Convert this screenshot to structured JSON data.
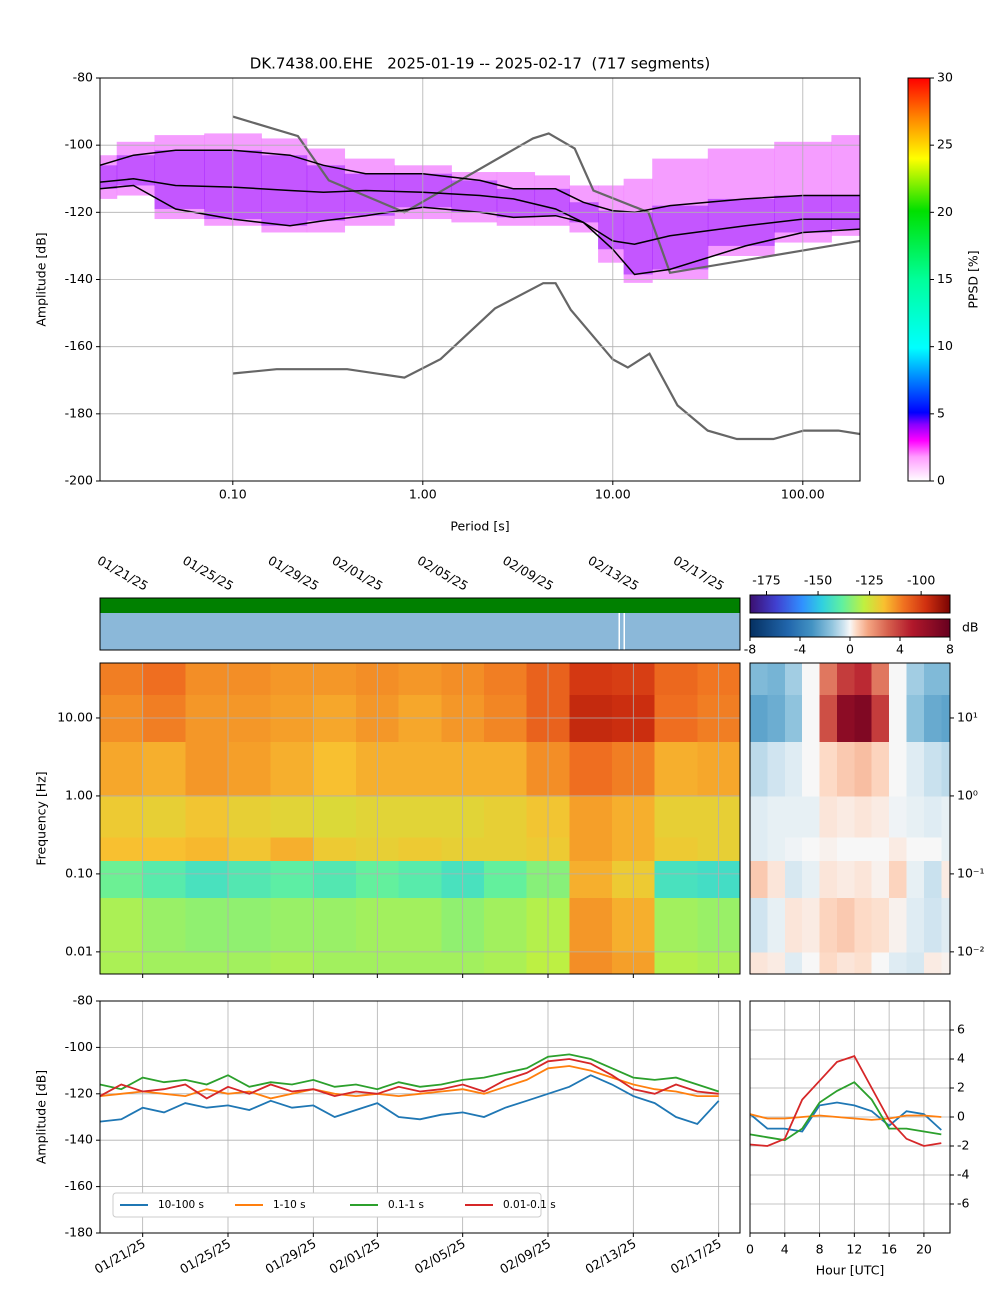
{
  "chart_data": [
    {
      "type": "ppsd",
      "title": "DK.7438.00.EHE   2025-01-19 -- 2025-02-17  (717 segments)",
      "xlabel": "Period [s]",
      "ylabel": "Amplitude [dB]",
      "log_x": true,
      "grid": true,
      "xlim": [
        0.02,
        200
      ],
      "ylim": [
        -200,
        -80
      ],
      "xticks": [
        {
          "value": 0.1,
          "label": "0.10"
        },
        {
          "value": 1,
          "label": "1.00"
        },
        {
          "value": 10,
          "label": "10.00"
        },
        {
          "value": 100,
          "label": "100.00"
        }
      ],
      "yticks": [
        -200,
        -180,
        -160,
        -140,
        -120,
        -100,
        -80
      ],
      "x": [
        0.02,
        0.03,
        0.05,
        0.1,
        0.2,
        0.3,
        0.5,
        1,
        2,
        3,
        5,
        7,
        10,
        13,
        20,
        50,
        100,
        200
      ],
      "density": {
        "color": "#f27cff",
        "upper": [
          -103,
          -99,
          -97,
          -96.5,
          -98,
          -101,
          -104,
          -106,
          -108,
          -108,
          -109,
          -112,
          -112,
          -110,
          -104,
          -101,
          -99,
          -97
        ],
        "lower": [
          -116,
          -115,
          -122,
          -124,
          -126,
          -126,
          -124,
          -122,
          -123,
          -124,
          -124,
          -126,
          -135,
          -141,
          -140,
          -133,
          -129,
          -127
        ]
      },
      "percentiles": [
        {
          "color": "#000000",
          "values": [
            -106,
            -103,
            -101.5,
            -101.5,
            -103,
            -106,
            -108.5,
            -108.5,
            -110.5,
            -113,
            -113,
            -117,
            -119.5,
            -120,
            -118,
            -116,
            -115,
            -115
          ]
        },
        {
          "color": "#000000",
          "values": [
            -111,
            -110,
            -112,
            -112.5,
            -113.5,
            -114,
            -113.5,
            -114,
            -115,
            -116,
            -119,
            -123,
            -128.5,
            -129.5,
            -127,
            -124,
            -122,
            -122
          ]
        },
        {
          "color": "#000000",
          "values": [
            -113,
            -112,
            -119,
            -122,
            -124,
            -122.5,
            -121,
            -118.5,
            -120,
            -121.5,
            -121,
            -123,
            -131,
            -138.5,
            -137,
            -130,
            -126,
            -125
          ]
        }
      ],
      "noise_models": [
        {
          "color": "#666666",
          "x": [
            0.1,
            0.22,
            0.32,
            0.8,
            3.8,
            4.6,
            6.3,
            7.9,
            15.4,
            20,
            200
          ],
          "values": [
            -91.5,
            -97.3,
            -110.5,
            -120,
            -98,
            -96.5,
            -101,
            -113.5,
            -120,
            -138,
            -128.5
          ]
        },
        {
          "color": "#666666",
          "x": [
            0.1,
            0.17,
            0.4,
            0.8,
            1.24,
            2.4,
            4.3,
            5.0,
            6.0,
            10,
            12,
            15.6,
            21.9,
            31.6,
            45,
            70,
            101,
            154,
            200
          ],
          "values": [
            -168,
            -166.7,
            -166.7,
            -169.2,
            -163.7,
            -148.6,
            -141.1,
            -141.1,
            -149,
            -163.8,
            -166.2,
            -162.1,
            -177.5,
            -185,
            -187.5,
            -187.5,
            -185,
            -185,
            -186
          ]
        }
      ],
      "colormap": "pqlx",
      "colorbar": {
        "label": "PPSD [%]",
        "lim": [
          0,
          30
        ],
        "ticks": [
          0,
          5,
          10,
          15,
          20,
          25,
          30
        ]
      }
    },
    {
      "type": "spectrogram",
      "ylabel": "Frequency [Hz]",
      "log_y": true,
      "grid": true,
      "xlim": [
        "2025-01-19",
        "2025-02-18"
      ],
      "ylim": [
        0.0052,
        50.7
      ],
      "xticks": [
        {
          "value": "2025-01-21",
          "label": "01/21/25"
        },
        {
          "value": "2025-01-25",
          "label": "01/25/25"
        },
        {
          "value": "2025-01-29",
          "label": "01/29/25"
        },
        {
          "value": "2025-02-01",
          "label": "02/01/25"
        },
        {
          "value": "2025-02-05",
          "label": "02/05/25"
        },
        {
          "value": "2025-02-09",
          "label": "02/09/25"
        },
        {
          "value": "2025-02-13",
          "label": "02/13/25"
        },
        {
          "value": "2025-02-17",
          "label": "02/17/25"
        }
      ],
      "yticks": [
        {
          "value": 0.01,
          "label": "0.01"
        },
        {
          "value": 0.1,
          "label": "0.10"
        },
        {
          "value": 1,
          "label": "1.00"
        },
        {
          "value": 10,
          "label": "10.00"
        }
      ],
      "time_bins": [
        "2025-01-19",
        "2025-01-21",
        "2025-01-23",
        "2025-01-25",
        "2025-01-27",
        "2025-01-29",
        "2025-01-31",
        "2025-02-02",
        "2025-02-04",
        "2025-02-06",
        "2025-02-08",
        "2025-02-10",
        "2025-02-12",
        "2025-02-14",
        "2025-02-16",
        "2025-02-18"
      ],
      "freq_bins": [
        0.0052,
        0.01,
        0.05,
        0.15,
        0.3,
        1,
        5,
        20,
        50.7
      ],
      "values": [
        [
          -130,
          -131,
          -131,
          -131,
          -130,
          -131,
          -131,
          -131,
          -131,
          -130,
          -128,
          -112,
          -114,
          -129,
          -130
        ],
        [
          -130,
          -132,
          -133,
          -133,
          -132,
          -132,
          -131,
          -131,
          -133,
          -131,
          -129,
          -113,
          -116,
          -131,
          -132
        ],
        [
          -137,
          -140,
          -143,
          -141,
          -139,
          -141,
          -138,
          -140,
          -143,
          -138,
          -134,
          -116,
          -120,
          -143,
          -144
        ],
        [
          -118,
          -118,
          -117,
          -119,
          -116,
          -120,
          -121,
          -120,
          -121,
          -121,
          -120,
          -114,
          -116,
          -120,
          -121
        ],
        [
          -120,
          -121,
          -119,
          -121,
          -122,
          -123,
          -122,
          -122,
          -122,
          -121,
          -119,
          -114,
          -116,
          -121,
          -121
        ],
        [
          -115,
          -116,
          -113,
          -114,
          -116,
          -118,
          -116,
          -116,
          -116,
          -116,
          -112,
          -108,
          -110,
          -116,
          -115
        ],
        [
          -112,
          -110,
          -113,
          -113,
          -114,
          -115,
          -113,
          -115,
          -113,
          -111,
          -106,
          -96,
          -97,
          -108,
          -110
        ],
        [
          -110,
          -108,
          -112,
          -112,
          -113,
          -113,
          -112,
          -113,
          -112,
          -110,
          -106,
          -99,
          -100,
          -107,
          -109
        ]
      ],
      "colormap": "rainbow",
      "colorbar": {
        "lim": [
          -183,
          -86
        ],
        "ticks": [
          -175,
          -150,
          -125,
          -100
        ]
      }
    },
    {
      "type": "spectrogram",
      "log_y": true,
      "xlim": [
        0,
        23
      ],
      "ylim": [
        0.0052,
        50.7
      ],
      "y_side": "right",
      "yticks": [
        {
          "value": 0.01,
          "label": "10⁻²"
        },
        {
          "value": 0.1,
          "label": "10⁻¹"
        },
        {
          "value": 1,
          "label": "10⁰"
        },
        {
          "value": 10,
          "label": "10¹"
        }
      ],
      "time_bins": [
        0,
        2,
        4,
        6,
        8,
        10,
        12,
        14,
        16,
        18,
        20,
        22,
        24
      ],
      "freq_bins": [
        0.0052,
        0.01,
        0.05,
        0.15,
        0.3,
        1,
        5,
        20,
        50.7
      ],
      "values": [
        [
          0.3,
          0.2,
          -0.3,
          0,
          0.5,
          0.3,
          0.4,
          0,
          -0.3,
          -0.4,
          0.2,
          0.1
        ],
        [
          -0.5,
          -0.2,
          0.3,
          0.2,
          0.6,
          0.8,
          0.5,
          0.4,
          0.1,
          -0.3,
          -0.5,
          -0.3
        ],
        [
          0.8,
          0.3,
          -0.4,
          -0.2,
          0.3,
          0.2,
          0.3,
          0.1,
          0.6,
          -0.2,
          -0.6,
          0.2
        ],
        [
          -0.3,
          -0.2,
          -0.1,
          0,
          0.1,
          0,
          0,
          0,
          0.2,
          0,
          0,
          -0.2
        ],
        [
          -0.3,
          -0.2,
          -0.2,
          -0.2,
          0.3,
          0.2,
          0.3,
          0.2,
          -0.1,
          -0.2,
          -0.3,
          -0.2
        ],
        [
          -0.8,
          -0.5,
          -0.3,
          0,
          0.5,
          0.8,
          1.0,
          0.6,
          0,
          -0.3,
          -0.6,
          -0.8
        ],
        [
          -2.5,
          -2.2,
          -1.5,
          0,
          3.5,
          6.5,
          7,
          4,
          0,
          -1.5,
          -2.3,
          -2.5
        ],
        [
          -1.8,
          -2,
          -1.2,
          0,
          2.5,
          4,
          4.5,
          2.5,
          0,
          -1.2,
          -1.8,
          -1.8
        ]
      ],
      "colormap": "RdBu_r",
      "colorbar": {
        "label": "dB",
        "lim": [
          -8,
          8
        ],
        "ticks": [
          -8,
          -4,
          0,
          4,
          8
        ]
      }
    },
    {
      "type": "line",
      "ylabel": "Amplitude [dB]",
      "grid": true,
      "legend": "lower left",
      "xlim": [
        "2025-01-19",
        "2025-02-18"
      ],
      "ylim": [
        -180,
        -80
      ],
      "xticks": [
        {
          "value": "2025-01-21",
          "label": "01/21/25"
        },
        {
          "value": "2025-01-25",
          "label": "01/25/25"
        },
        {
          "value": "2025-01-29",
          "label": "01/29/25"
        },
        {
          "value": "2025-02-01",
          "label": "02/01/25"
        },
        {
          "value": "2025-02-05",
          "label": "02/05/25"
        },
        {
          "value": "2025-02-09",
          "label": "02/09/25"
        },
        {
          "value": "2025-02-13",
          "label": "02/13/25"
        },
        {
          "value": "2025-02-17",
          "label": "02/17/25"
        }
      ],
      "yticks": [
        -180,
        -160,
        -140,
        -120,
        -100,
        -80
      ],
      "x": [
        "2025-01-19",
        "2025-01-20",
        "2025-01-21",
        "2025-01-22",
        "2025-01-23",
        "2025-01-24",
        "2025-01-25",
        "2025-01-26",
        "2025-01-27",
        "2025-01-28",
        "2025-01-29",
        "2025-01-30",
        "2025-01-31",
        "2025-02-01",
        "2025-02-02",
        "2025-02-03",
        "2025-02-04",
        "2025-02-05",
        "2025-02-06",
        "2025-02-07",
        "2025-02-08",
        "2025-02-09",
        "2025-02-10",
        "2025-02-11",
        "2025-02-12",
        "2025-02-13",
        "2025-02-14",
        "2025-02-15",
        "2025-02-16",
        "2025-02-17"
      ],
      "series": [
        {
          "name": "10-100 s",
          "color": "#1f77b4",
          "values": [
            -132,
            -131,
            -126,
            -128,
            -124,
            -126,
            -125,
            -127,
            -123,
            -126,
            -125,
            -130,
            -127,
            -124,
            -130,
            -131,
            -129,
            -128,
            -130,
            -126,
            -123,
            -120,
            -117,
            -112,
            -116,
            -121,
            -124,
            -130,
            -133,
            -123
          ]
        },
        {
          "name": "1-10 s",
          "color": "#ff7f0e",
          "values": [
            -121,
            -120,
            -119,
            -120,
            -121,
            -118,
            -120,
            -119,
            -122,
            -120,
            -118,
            -120,
            -121,
            -120,
            -121,
            -120,
            -119,
            -118,
            -120,
            -117,
            -114,
            -109,
            -108,
            -110,
            -113,
            -116,
            -118,
            -119,
            -121,
            -121
          ]
        },
        {
          "name": "0.1-1 s",
          "color": "#2ca02c",
          "values": [
            -116,
            -118,
            -113,
            -115,
            -114,
            -116,
            -112,
            -117,
            -115,
            -116,
            -114,
            -117,
            -116,
            -118,
            -115,
            -117,
            -116,
            -114,
            -113,
            -111,
            -109,
            -104,
            -103,
            -105,
            -109,
            -113,
            -114,
            -113,
            -116,
            -119
          ]
        },
        {
          "name": "0.01-0.1 s",
          "color": "#d62728",
          "values": [
            -121,
            -116,
            -119,
            -118,
            -116,
            -122,
            -117,
            -120,
            -116,
            -119,
            -118,
            -121,
            -119,
            -120,
            -117,
            -119,
            -118,
            -116,
            -119,
            -114,
            -111,
            -106,
            -105,
            -107,
            -112,
            -118,
            -120,
            -116,
            -119,
            -120
          ]
        }
      ]
    },
    {
      "type": "line",
      "xlabel": "Hour [UTC]",
      "grid": true,
      "y_side": "right",
      "xlim": [
        0,
        23
      ],
      "ylim": [
        -8,
        8
      ],
      "xticks": [
        0,
        4,
        8,
        12,
        16,
        20
      ],
      "yticks": [
        -6,
        -4,
        -2,
        0,
        2,
        4,
        6
      ],
      "x": [
        0,
        2,
        4,
        6,
        8,
        10,
        12,
        14,
        16,
        18,
        20,
        22
      ],
      "series": [
        {
          "color": "#1f77b4",
          "values": [
            0.2,
            -0.8,
            -0.8,
            -1.0,
            0.8,
            1.0,
            0.8,
            0.4,
            -0.6,
            0.4,
            0.2,
            -0.9
          ]
        },
        {
          "color": "#ff7f0e",
          "values": [
            0.2,
            -0.1,
            -0.1,
            0,
            0.1,
            0,
            -0.1,
            -0.2,
            -0.1,
            0.1,
            0.1,
            0.0
          ]
        },
        {
          "color": "#2ca02c",
          "values": [
            -1.2,
            -1.4,
            -1.6,
            -0.8,
            1.0,
            1.8,
            2.4,
            1.2,
            -0.8,
            -0.8,
            -1.0,
            -1.2
          ]
        },
        {
          "color": "#d62728",
          "values": [
            -1.9,
            -2.0,
            -1.5,
            1.2,
            2.5,
            3.8,
            4.2,
            2.0,
            -0.2,
            -1.5,
            -2.0,
            -1.8
          ]
        }
      ]
    }
  ]
}
